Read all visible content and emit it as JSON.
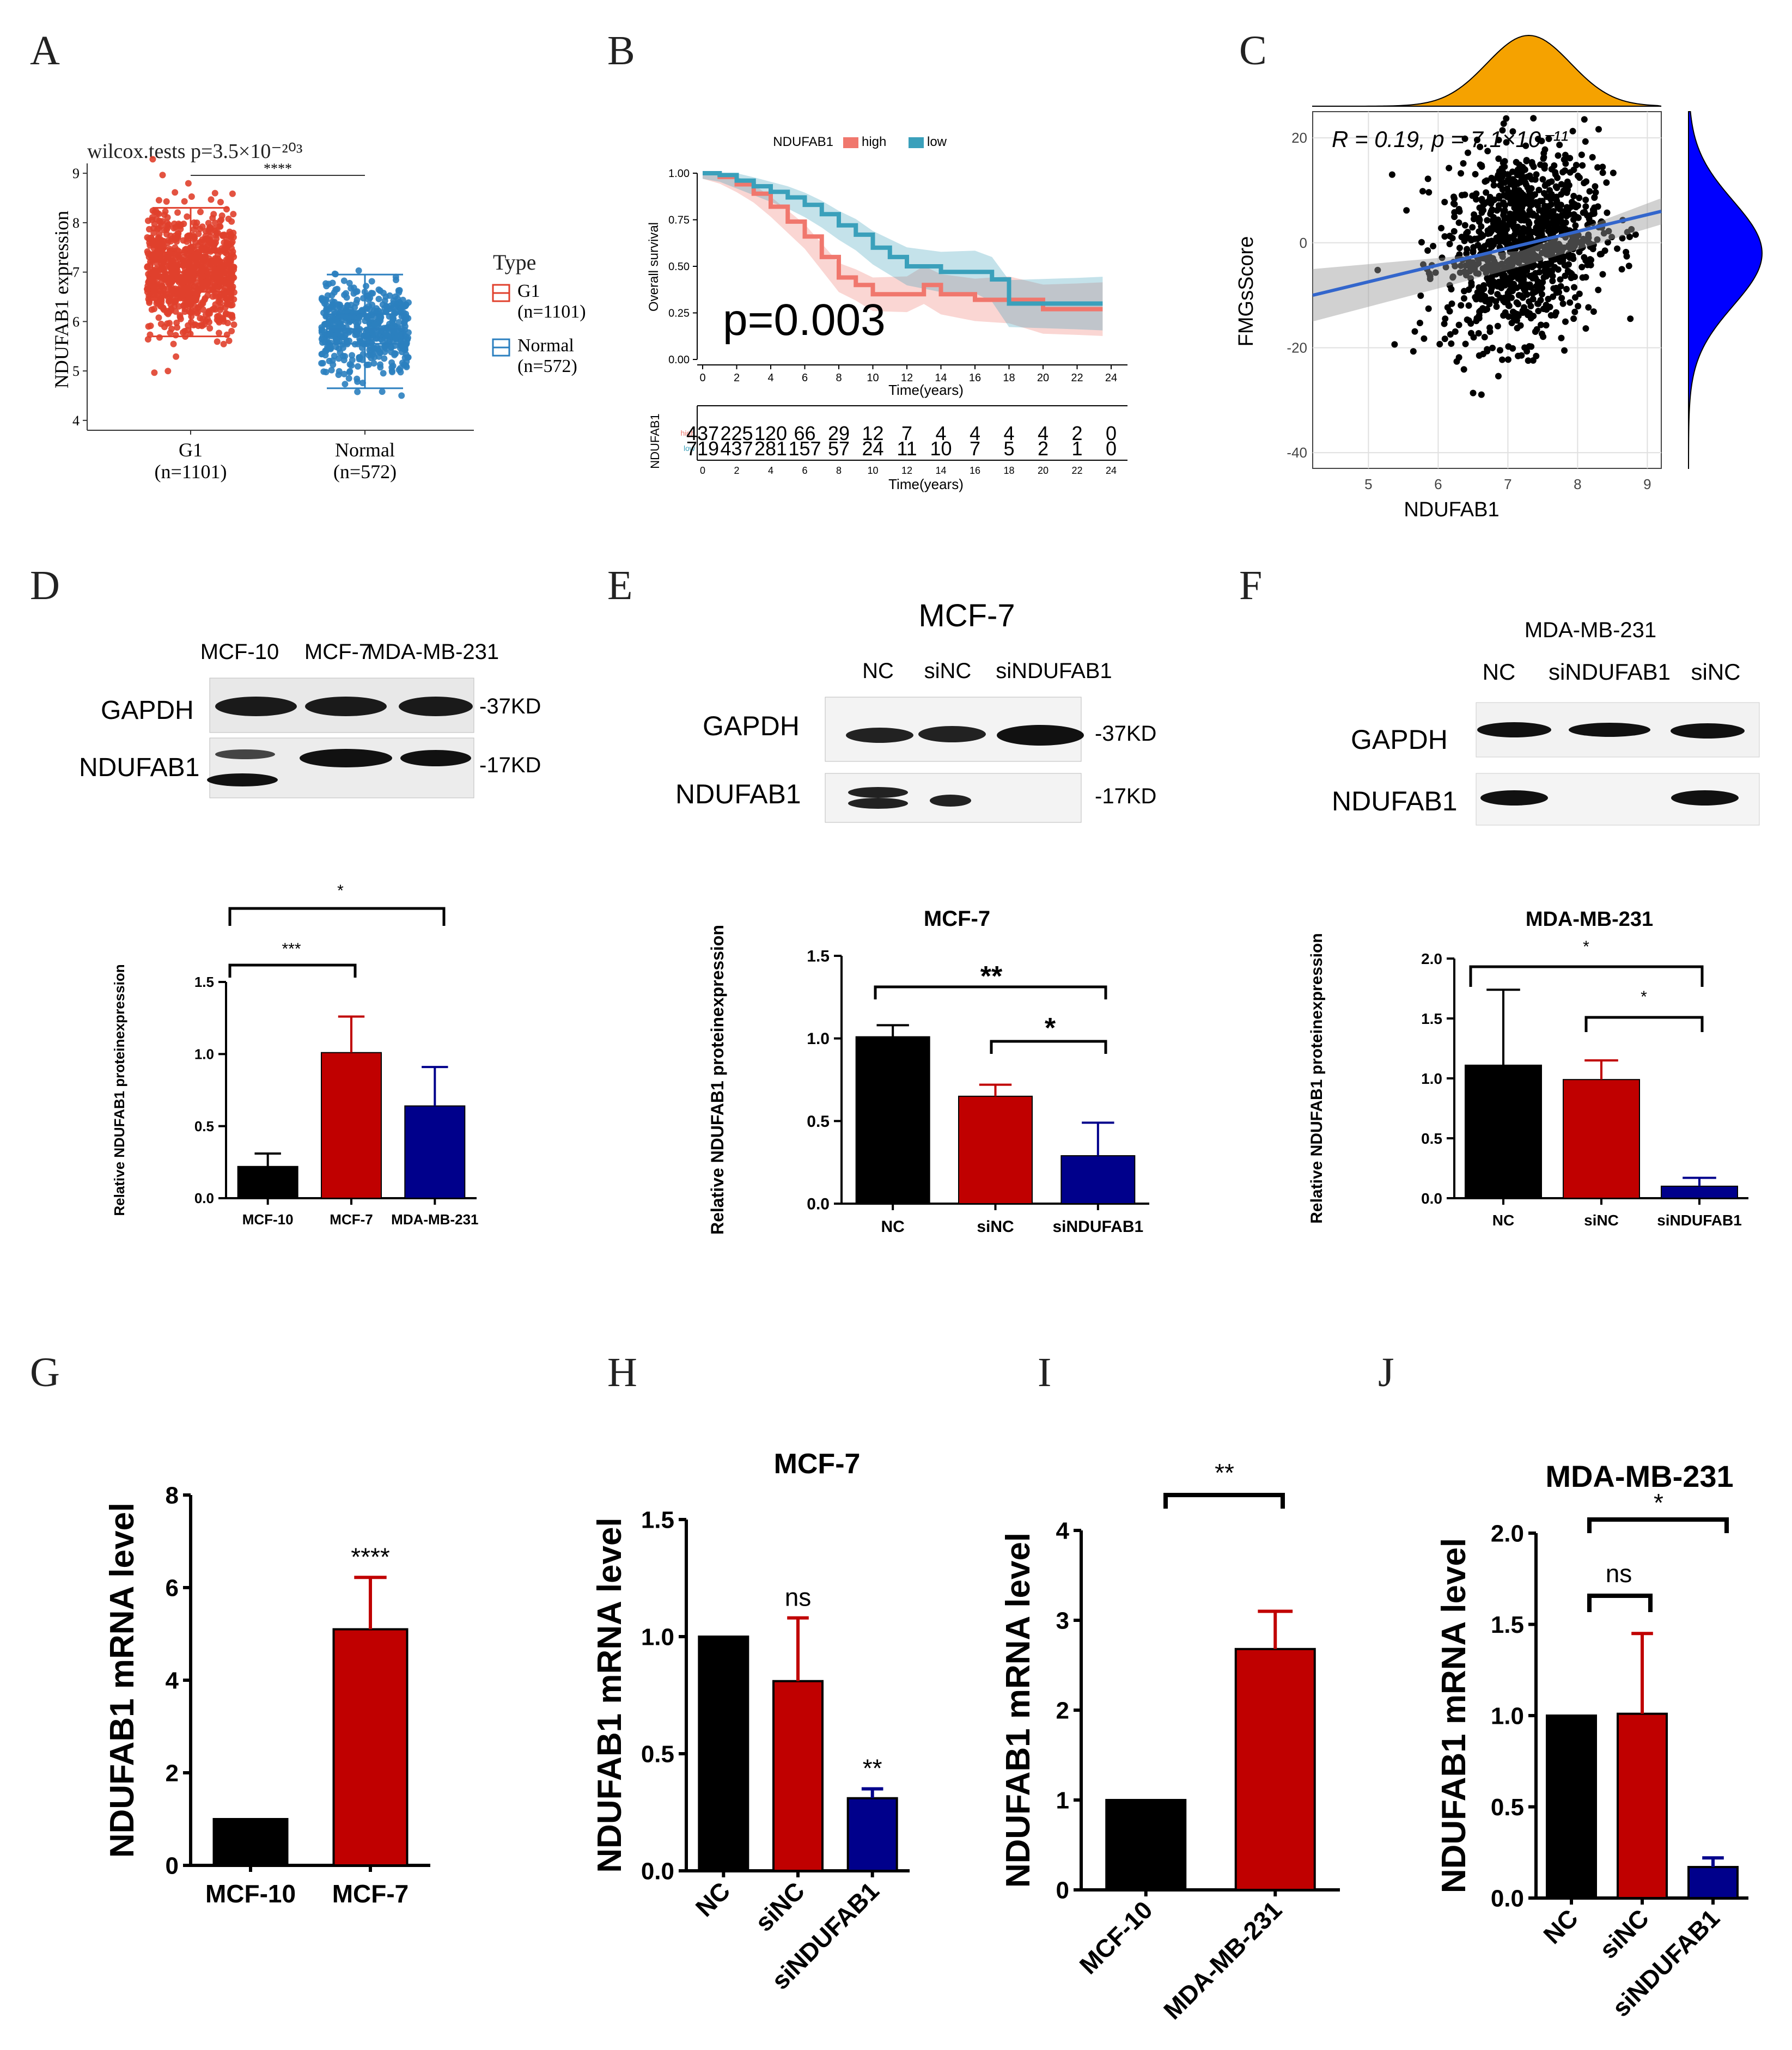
{
  "colors": {
    "black": "#000000",
    "red": "#c00000",
    "navy": "#00008b",
    "gg_red": "#e0402c",
    "gg_blue": "#2b7fbf",
    "km_high": "#f0776d",
    "km_low": "#3aa0bb",
    "orange": "#f5a200",
    "blue_density": "#0000ff",
    "fit_line": "#3366cc"
  },
  "panel_letters": {
    "A": "A",
    "B": "B",
    "C": "C",
    "D": "D",
    "E": "E",
    "F": "F",
    "G": "G",
    "H": "H",
    "I": "I",
    "J": "J"
  },
  "panelA": {
    "title": "wilcox.tests p=3.5×10⁻²⁰³",
    "stars": "****",
    "ylabel": "NDUFAB1 expression",
    "legend_title": "Type",
    "legend_items": [
      {
        "label": "G1",
        "sub": "(n=1101)",
        "color": "#e0402c"
      },
      {
        "label": "Normal",
        "sub": "(n=572)",
        "color": "#2b7fbf"
      }
    ]
  },
  "panelB": {
    "legend_title": "NDUFAB1",
    "legend_items": [
      {
        "label": "high",
        "color": "#f0776d"
      },
      {
        "label": "low",
        "color": "#3aa0bb"
      }
    ],
    "ylabel": "Overall survival",
    "xlabel": "Time(years)",
    "pvalue": "p=0.003",
    "risk_ylabel": "NDUFAB1",
    "risk_xlabel": "Time(years)",
    "risk_rows": [
      {
        "name": "high",
        "values": [
          "437",
          "225",
          "120",
          "66",
          "29",
          "12",
          "7",
          "4",
          "4",
          "4",
          "4",
          "2",
          "0"
        ]
      },
      {
        "name": "low",
        "values": [
          "719",
          "437",
          "281",
          "157",
          "57",
          "24",
          "11",
          "10",
          "7",
          "5",
          "2",
          "1",
          "0"
        ]
      }
    ]
  },
  "panelC": {
    "annotation": "R = 0.19, p = 7.1×10⁻¹¹",
    "xlabel": "NDUFAB1",
    "ylabel": "FMGsScore"
  },
  "panelD": {
    "blot_labels": [
      "MCF-10",
      "MCF-7",
      "MDA-MB-231"
    ],
    "blot_rows": [
      "GAPDH",
      "NDUFAB1"
    ],
    "sizes": [
      "-37KD",
      "-17KD"
    ],
    "stars": [
      "*",
      "***"
    ]
  },
  "panelE": {
    "title": "MCF-7",
    "blot_labels": [
      "NC",
      "siNC",
      "siNDUFAB1"
    ],
    "blot_rows": [
      "GAPDH",
      "NDUFAB1"
    ],
    "sizes": [
      "-37KD",
      "-17KD"
    ],
    "stars": [
      "**",
      "*"
    ]
  },
  "panelF": {
    "title": "MDA-MB-231",
    "blot_labels": [
      "NC",
      "siNDUFAB1",
      "siNC"
    ],
    "blot_rows": [
      "GAPDH",
      "NDUFAB1"
    ],
    "stars": [
      "*",
      "*"
    ]
  },
  "chart_data": [
    {
      "id": "A",
      "type": "scatter",
      "title": "wilcox.tests p=3.5×10⁻²⁰³",
      "ylabel": "NDUFAB1 expression",
      "xlabel": "",
      "categories": [
        "G1",
        "Normal"
      ],
      "category_sub": [
        "(n=1101)",
        "(n=572)"
      ],
      "ylim": [
        3.8,
        9.2
      ],
      "yticks": [
        4,
        5,
        6,
        7,
        8,
        9
      ],
      "box": [
        {
          "q1": 6.6,
          "median": 7.0,
          "q3": 7.4,
          "lo": 5.7,
          "hi": 8.3
        },
        {
          "q1": 5.55,
          "median": 5.85,
          "q3": 6.15,
          "lo": 4.65,
          "hi": 6.95
        }
      ]
    },
    {
      "id": "B",
      "type": "line",
      "ylabel": "Overall survival",
      "xlabel": "Time(years)",
      "xlim": [
        0,
        24
      ],
      "ylim": [
        0,
        1
      ],
      "xticks": [
        0,
        2,
        4,
        6,
        8,
        10,
        12,
        14,
        16,
        18,
        20,
        22,
        24
      ],
      "yticks": [
        0,
        0.25,
        0.5,
        0.75,
        1.0
      ],
      "series": [
        {
          "name": "high",
          "x": [
            0,
            1,
            2,
            3,
            4,
            5,
            6,
            7,
            8,
            9,
            10,
            12,
            13,
            14,
            16,
            17,
            18,
            20,
            22,
            23.5
          ],
          "y": [
            1.0,
            0.98,
            0.94,
            0.89,
            0.82,
            0.74,
            0.66,
            0.55,
            0.44,
            0.4,
            0.35,
            0.35,
            0.4,
            0.35,
            0.32,
            0.32,
            0.32,
            0.27,
            0.27,
            0.27
          ]
        },
        {
          "name": "low",
          "x": [
            0,
            1,
            2,
            3,
            4,
            5,
            6,
            7,
            8,
            9,
            10,
            11,
            12,
            14,
            16,
            17,
            18,
            20,
            22,
            23.5
          ],
          "y": [
            1.0,
            0.99,
            0.96,
            0.93,
            0.9,
            0.87,
            0.83,
            0.78,
            0.72,
            0.67,
            0.6,
            0.55,
            0.5,
            0.47,
            0.47,
            0.43,
            0.3,
            0.3,
            0.3,
            0.3
          ]
        }
      ]
    },
    {
      "id": "C",
      "type": "scatter",
      "xlabel": "NDUFAB1",
      "ylabel": "FMGsScore",
      "xlim": [
        4.2,
        9.2
      ],
      "ylim": [
        -43,
        25
      ],
      "xticks": [
        5,
        6,
        7,
        8,
        9
      ],
      "yticks": [
        -40,
        -20,
        0,
        20
      ],
      "fit": {
        "x": [
          4.2,
          9.2
        ],
        "y": [
          -10,
          6
        ]
      },
      "R": 0.19,
      "p": "7.1×10⁻¹¹"
    },
    {
      "id": "D",
      "type": "bar",
      "ylabel": "Relative NDUFAB1 proteinexpression",
      "categories": [
        "MCF-10",
        "MCF-7",
        "MDA-MB-231"
      ],
      "values": [
        0.22,
        1.01,
        0.64
      ],
      "errors": [
        0.09,
        0.25,
        0.27
      ],
      "colors": [
        "#000000",
        "#c00000",
        "#00008b"
      ],
      "ylim": [
        0,
        1.5
      ],
      "yticks": [
        "0.0",
        "0.5",
        "1.0",
        "1.5"
      ],
      "tick_values": [
        0,
        0.5,
        1.0,
        1.5
      ]
    },
    {
      "id": "E",
      "type": "bar",
      "title": "MCF-7",
      "ylabel": "Relative NDUFAB1 proteinexpression",
      "categories": [
        "NC",
        "siNC",
        "siNDUFAB1"
      ],
      "values": [
        1.01,
        0.65,
        0.29
      ],
      "errors": [
        0.07,
        0.07,
        0.2
      ],
      "colors": [
        "#000000",
        "#c00000",
        "#00008b"
      ],
      "ylim": [
        0,
        1.5
      ],
      "yticks": [
        "0.0",
        "0.5",
        "1.0",
        "1.5"
      ],
      "tick_values": [
        0,
        0.5,
        1.0,
        1.5
      ]
    },
    {
      "id": "F",
      "type": "bar",
      "title": "MDA-MB-231",
      "ylabel": "Relative NDUFAB1 proteinexpression",
      "categories": [
        "NC",
        "siNC",
        "siNDUFAB1"
      ],
      "values": [
        1.11,
        0.99,
        0.1
      ],
      "errors": [
        0.63,
        0.16,
        0.07
      ],
      "colors": [
        "#000000",
        "#c00000",
        "#00008b"
      ],
      "ylim": [
        0,
        2.0
      ],
      "yticks": [
        "0.0",
        "0.5",
        "1.0",
        "1.5",
        "2.0"
      ],
      "tick_values": [
        0,
        0.5,
        1.0,
        1.5,
        2.0
      ]
    },
    {
      "id": "G",
      "type": "bar",
      "ylabel": "NDUFAB1 mRNA level",
      "categories": [
        "MCF-10",
        "MCF-7"
      ],
      "values": [
        1.0,
        5.1
      ],
      "errors": [
        0,
        1.12
      ],
      "colors": [
        "#000000",
        "#c00000"
      ],
      "ylim": [
        0,
        8
      ],
      "yticks": [
        "0",
        "2",
        "4",
        "6",
        "8"
      ],
      "tick_values": [
        0,
        2,
        4,
        6,
        8
      ],
      "annotations": [
        "",
        "****"
      ]
    },
    {
      "id": "H",
      "type": "bar",
      "title": "MCF-7",
      "ylabel": "NDUFAB1 mRNA level",
      "categories": [
        "NC",
        "siNC",
        "siNDUFAB1"
      ],
      "values": [
        1.0,
        0.81,
        0.31
      ],
      "errors": [
        0,
        0.27,
        0.04
      ],
      "colors": [
        "#000000",
        "#c00000",
        "#00008b"
      ],
      "ylim": [
        0,
        1.5
      ],
      "yticks": [
        "0.0",
        "0.5",
        "1.0",
        "1.5"
      ],
      "tick_values": [
        0,
        0.5,
        1.0,
        1.5
      ],
      "annotations": [
        "",
        "ns",
        "**"
      ]
    },
    {
      "id": "I",
      "type": "bar",
      "ylabel": "NDUFAB1 mRNA level",
      "categories": [
        "MCF-10",
        "MDA-MB-231"
      ],
      "values": [
        1.0,
        2.68
      ],
      "errors": [
        0,
        0.42
      ],
      "colors": [
        "#000000",
        "#c00000"
      ],
      "ylim": [
        0,
        4
      ],
      "yticks": [
        "0",
        "1",
        "2",
        "3",
        "4"
      ],
      "tick_values": [
        0,
        1,
        2,
        3,
        4
      ],
      "bracket": "**"
    },
    {
      "id": "J",
      "type": "bar",
      "title": "MDA-MB-231",
      "ylabel": "NDUFAB1 mRNA level",
      "categories": [
        "NC",
        "siNC",
        "siNDUFAB1"
      ],
      "values": [
        1.0,
        1.01,
        0.17
      ],
      "errors": [
        0,
        0.44,
        0.05
      ],
      "colors": [
        "#000000",
        "#c00000",
        "#00008b"
      ],
      "ylim": [
        0,
        2.0
      ],
      "yticks": [
        "0.0",
        "0.5",
        "1.0",
        "1.5",
        "2.0"
      ],
      "tick_values": [
        0,
        0.5,
        1.0,
        1.5,
        2.0
      ],
      "brackets": [
        "ns",
        "*"
      ]
    }
  ]
}
